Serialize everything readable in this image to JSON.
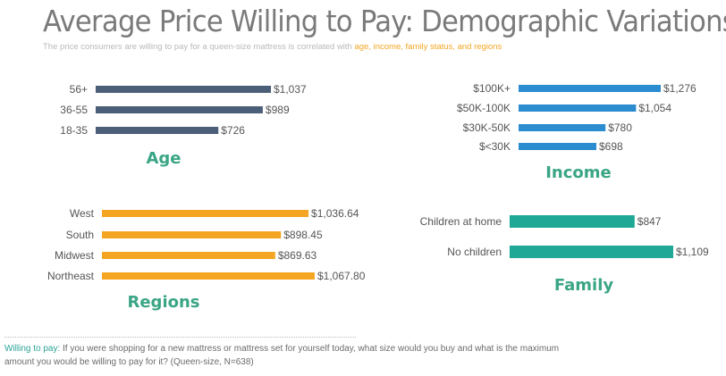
{
  "header": {
    "title": "Average Price Willing to Pay: Demographic Variations",
    "subtitle_prefix": "The price consumers are willing to pay for a queen-size mattress is correlated with ",
    "subtitle_highlight": "age, income, family status, and regions"
  },
  "footer": {
    "lead": "Willing to pay:",
    "text": " If you were shopping for a new mattress or mattress set for yourself today, what size would you buy and what is the maximum amount you would be willing to pay for it? (Queen-size, N=638)"
  },
  "colors": {
    "age": "#4c5f78",
    "income": "#2b8ccf",
    "regions": "#f4a622",
    "family": "#1fa896",
    "panel_title": "#3aa585"
  },
  "chart_data": [
    {
      "type": "bar",
      "orientation": "horizontal",
      "title": "Age",
      "categories": [
        "56+",
        "36-55",
        "18-35"
      ],
      "values": [
        1037,
        989,
        726
      ],
      "labels": [
        "$1,037",
        "$989",
        "$726"
      ],
      "xlabel": "",
      "ylabel": "",
      "unit": "USD"
    },
    {
      "type": "bar",
      "orientation": "horizontal",
      "title": "Income",
      "categories": [
        "$100K+",
        "$50K-100K",
        "$30K-50K",
        "$<30K"
      ],
      "values": [
        1276,
        1054,
        780,
        698
      ],
      "labels": [
        "$1,276",
        "$1,054",
        "$780",
        "$698"
      ],
      "xlabel": "",
      "ylabel": "",
      "unit": "USD"
    },
    {
      "type": "bar",
      "orientation": "horizontal",
      "title": "Regions",
      "categories": [
        "West",
        "South",
        "Midwest",
        "Northeast"
      ],
      "values": [
        1036.64,
        898.45,
        869.63,
        1067.8
      ],
      "labels": [
        "$1,036.64",
        "$898.45",
        "$869.63",
        "$1,067.80"
      ],
      "xlabel": "",
      "ylabel": "",
      "unit": "USD"
    },
    {
      "type": "bar",
      "orientation": "horizontal",
      "title": "Family",
      "categories": [
        "Children at home",
        "No children"
      ],
      "values": [
        847,
        1109
      ],
      "labels": [
        "$847",
        "$1,109"
      ],
      "xlabel": "",
      "ylabel": "",
      "unit": "USD"
    }
  ]
}
